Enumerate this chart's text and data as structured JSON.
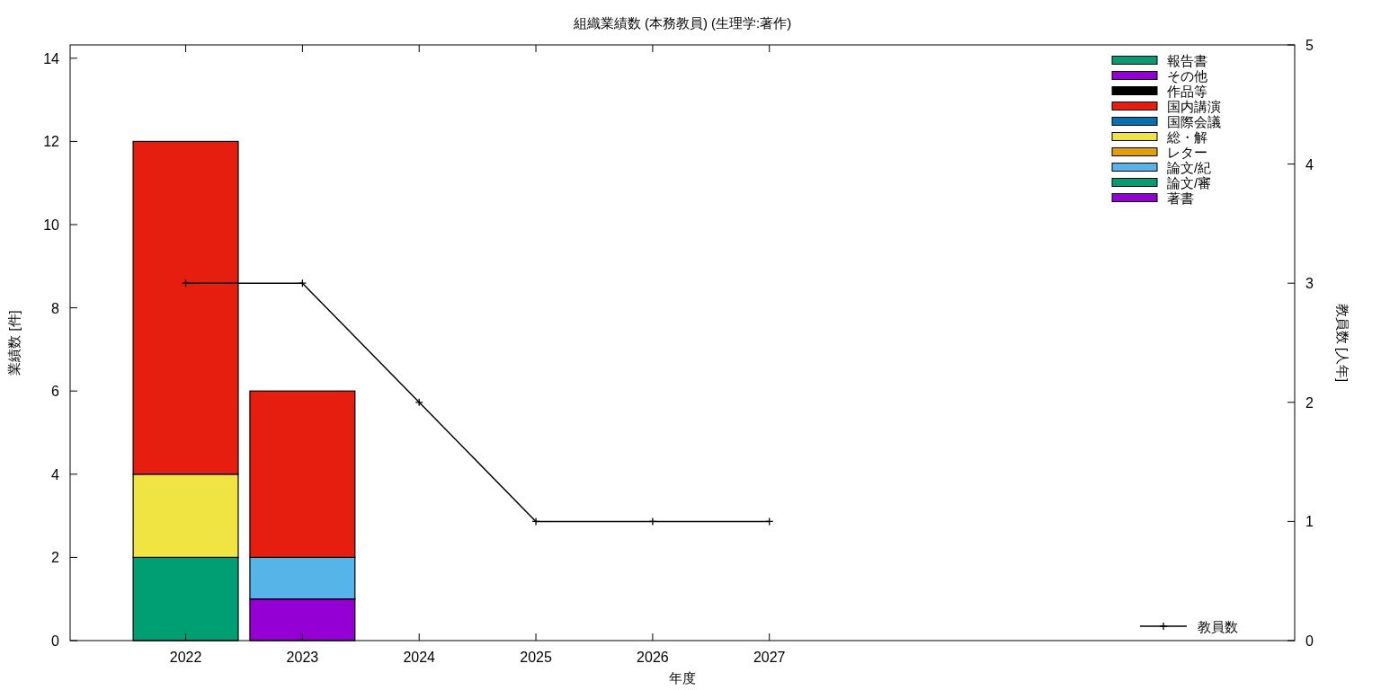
{
  "chart_data": {
    "type": "bar",
    "title": "組織業績数 (本務教員) (生理学:著作)",
    "xlabel": "年度",
    "ylabel": "業績数 [件]",
    "y2label": "教員数 [人年]",
    "x": [
      2022,
      2023,
      2024,
      2025,
      2026,
      2027
    ],
    "xlim": [
      2021.01,
      2031.5
    ],
    "xticks": [
      2022,
      2023,
      2024,
      2025,
      2026,
      2027
    ],
    "ylim": [
      0,
      14.32
    ],
    "yticks": [
      0,
      2,
      4,
      6,
      8,
      10,
      12,
      14
    ],
    "y2lim": [
      0,
      5
    ],
    "y2ticks": [
      0,
      1,
      2,
      3,
      4,
      5
    ],
    "stacked": true,
    "legend": "right",
    "grid": false,
    "series": [
      {
        "name": "著書",
        "color": "#9400d3",
        "values": [
          0,
          1,
          0,
          0,
          0,
          0
        ]
      },
      {
        "name": "論文/審",
        "color": "#009e73",
        "values": [
          2,
          0,
          0,
          0,
          0,
          0
        ]
      },
      {
        "name": "論文/紀",
        "color": "#56b4e9",
        "values": [
          0,
          1,
          0,
          0,
          0,
          0
        ]
      },
      {
        "name": "レター",
        "color": "#e69f00",
        "values": [
          0,
          0,
          0,
          0,
          0,
          0
        ]
      },
      {
        "name": "総・解",
        "color": "#f0e442",
        "values": [
          2,
          0,
          0,
          0,
          0,
          0
        ]
      },
      {
        "name": "国際会議",
        "color": "#0072b2",
        "values": [
          0,
          0,
          0,
          0,
          0,
          0
        ]
      },
      {
        "name": "国内講演",
        "color": "#e51e10",
        "values": [
          8,
          4,
          0,
          0,
          0,
          0
        ]
      },
      {
        "name": "作品等",
        "color": "#000000",
        "values": [
          0,
          0,
          0,
          0,
          0,
          0
        ]
      },
      {
        "name": "その他",
        "color": "#9400d3",
        "values": [
          0,
          0,
          0,
          0,
          0,
          0
        ]
      },
      {
        "name": "報告書",
        "color": "#009e73",
        "values": [
          0,
          0,
          0,
          0,
          0,
          0
        ]
      },
      {
        "name": "教員数",
        "type": "line",
        "axis": "y2",
        "color": "#000000",
        "marker": "cross",
        "values": [
          3,
          3,
          2,
          1,
          1,
          1
        ]
      }
    ]
  }
}
